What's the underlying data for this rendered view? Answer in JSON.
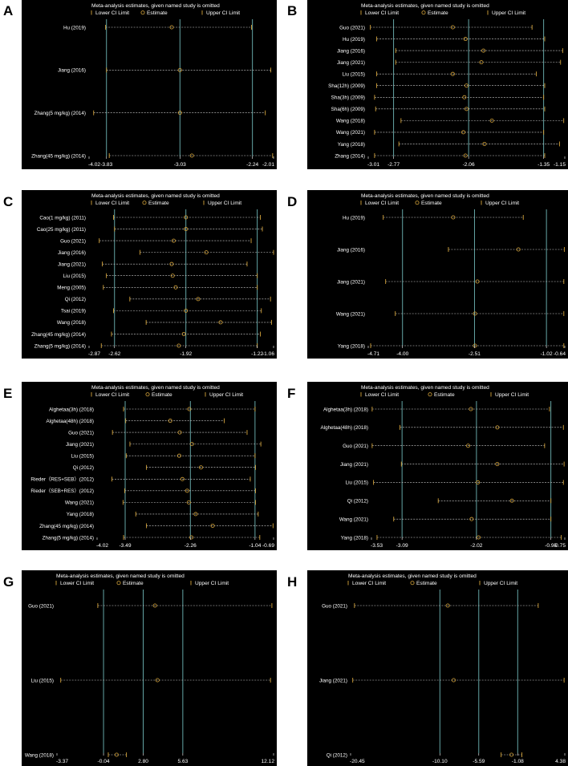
{
  "colors": {
    "background": "#000000",
    "text": "#ffffff",
    "guide": "#6fb7b7",
    "ci_line": "#cfcfcf",
    "estimate": "#d4a33a"
  },
  "legend": {
    "title": "Meta-analysis estimates, given named study is omitted",
    "lower": "Lower CI Limit",
    "estimate": "Estimate",
    "upper": "Upper CI Limit"
  },
  "chart_data": [
    {
      "panel": "A",
      "type": "scatter",
      "xlim": [
        -4.02,
        -2.01
      ],
      "ticks": [
        "-4.02",
        "-3.83",
        "-3.03",
        "-2.24",
        "-2.01"
      ],
      "tick_values": [
        -4.02,
        -3.83,
        -3.03,
        -2.24,
        -2.01
      ],
      "studies": [
        {
          "label": "Hu (2019)",
          "lower": -3.84,
          "est": -3.12,
          "upper": -2.25
        },
        {
          "label": "Jiang (2016)",
          "lower": -3.83,
          "est": -3.03,
          "upper": -2.04
        },
        {
          "label": "Zhang(5 mg/kg) (2014)",
          "lower": -3.97,
          "est": -3.03,
          "upper": -2.1
        },
        {
          "label": "Zhang(45 mg/kg) (2014)",
          "lower": -3.8,
          "est": -2.9,
          "upper": -2.02
        }
      ]
    },
    {
      "panel": "B",
      "type": "scatter",
      "xlim": [
        -3.01,
        -1.15
      ],
      "ticks": [
        "-3.01",
        "-2.77",
        "-2.06",
        "-1.35",
        "-1.15"
      ],
      "tick_values": [
        -3.01,
        -2.77,
        -2.06,
        -1.35,
        -1.15
      ],
      "studies": [
        {
          "label": "Guo (2021)",
          "lower": -2.99,
          "est": -2.21,
          "upper": -1.46
        },
        {
          "label": "Hu (2019)",
          "lower": -2.93,
          "est": -2.09,
          "upper": -1.34
        },
        {
          "label": "Jiang (2016)",
          "lower": -2.75,
          "est": -1.92,
          "upper": -1.17
        },
        {
          "label": "Jiang (2021)",
          "lower": -2.75,
          "est": -1.94,
          "upper": -1.19
        },
        {
          "label": "Liu (2015)",
          "lower": -2.93,
          "est": -2.21,
          "upper": -1.42
        },
        {
          "label": "Sha(12h) (2009)",
          "lower": -2.93,
          "est": -2.08,
          "upper": -1.34
        },
        {
          "label": "Sha(3h) (2009)",
          "lower": -2.95,
          "est": -2.1,
          "upper": -1.35
        },
        {
          "label": "Sha(6h) (2009)",
          "lower": -2.94,
          "est": -2.08,
          "upper": -1.34
        },
        {
          "label": "Wang (2018)",
          "lower": -2.7,
          "est": -1.84,
          "upper": -1.16
        },
        {
          "label": "Wang (2021)",
          "lower": -2.95,
          "est": -2.11,
          "upper": -1.35
        },
        {
          "label": "Yang (2018)",
          "lower": -2.72,
          "est": -1.91,
          "upper": -1.2
        },
        {
          "label": "Zhang (2014)",
          "lower": -2.95,
          "est": -2.09,
          "upper": -1.34
        }
      ]
    },
    {
      "panel": "C",
      "type": "scatter",
      "xlim": [
        -2.87,
        -1.06
      ],
      "ticks": [
        "-2.87",
        "-2.62",
        "-1.92",
        "-1.22",
        "-1.06"
      ],
      "tick_values": [
        -2.87,
        -2.62,
        -1.92,
        -1.22,
        -1.06
      ],
      "studies": [
        {
          "label": "Cao(1 mg/kg) (2011)",
          "lower": -2.63,
          "est": -1.92,
          "upper": -1.19
        },
        {
          "label": "Cao(25 mg/kg) (2011)",
          "lower": -2.62,
          "est": -1.92,
          "upper": -1.17
        },
        {
          "label": "Guo (2021)",
          "lower": -2.77,
          "est": -2.04,
          "upper": -1.28
        },
        {
          "label": "Jiang (2016)",
          "lower": -2.37,
          "est": -1.72,
          "upper": -1.06
        },
        {
          "label": "Jiang (2021)",
          "lower": -2.74,
          "est": -2.06,
          "upper": -1.32
        },
        {
          "label": "Liu (2015)",
          "lower": -2.7,
          "est": -2.05,
          "upper": -1.22
        },
        {
          "label": "Meng (2005)",
          "lower": -2.73,
          "est": -2.02,
          "upper": -1.22
        },
        {
          "label": "Qi (2012)",
          "lower": -2.47,
          "est": -1.8,
          "upper": -1.09
        },
        {
          "label": "Tsai (2019)",
          "lower": -2.63,
          "est": -1.92,
          "upper": -1.18
        },
        {
          "label": "Wang (2018)",
          "lower": -2.31,
          "est": -1.58,
          "upper": -1.08
        },
        {
          "label": "Zhang(45 mg/kg) (2014)",
          "lower": -2.65,
          "est": -1.94,
          "upper": -1.19
        },
        {
          "label": "Zhang(5 mg/kg) (2014)",
          "lower": -2.75,
          "est": -1.99,
          "upper": -1.22
        }
      ]
    },
    {
      "panel": "D",
      "type": "scatter",
      "xlim": [
        -4.71,
        -0.64
      ],
      "ticks": [
        "-4.71",
        "-4.00",
        "-2.51",
        "-1.02",
        "-0.64"
      ],
      "tick_values": [
        -4.71,
        -4.0,
        -2.51,
        -1.02,
        -0.64
      ],
      "studies": [
        {
          "label": "Hu (2019)",
          "lower": -4.4,
          "est": -2.95,
          "upper": -1.5
        },
        {
          "label": "Jiang (2016)",
          "lower": -3.05,
          "est": -1.6,
          "upper": -0.65
        },
        {
          "label": "Jiang (2021)",
          "lower": -4.35,
          "est": -2.45,
          "upper": -0.66
        },
        {
          "label": "Wang (2021)",
          "lower": -4.15,
          "est": -2.5,
          "upper": -0.66
        },
        {
          "label": "Yang (2018)",
          "lower": -4.66,
          "est": -2.5,
          "upper": -0.66
        }
      ]
    },
    {
      "panel": "E",
      "type": "scatter",
      "xlim": [
        -4.02,
        -0.69
      ],
      "ticks": [
        "-4.02",
        "-3.49",
        "-2.26",
        "-1.04",
        "-0.69"
      ],
      "tick_values": [
        -4.02,
        -3.49,
        -2.26,
        -1.04,
        -0.69
      ],
      "studies": [
        {
          "label": "Alghetaa(3h) (2018)",
          "lower": -3.52,
          "est": -2.28,
          "upper": -1.04
        },
        {
          "label": "Alghetaa(48h) (2018)",
          "lower": -3.48,
          "est": -2.64,
          "upper": -1.62
        },
        {
          "label": "Guo (2021)",
          "lower": -3.73,
          "est": -2.46,
          "upper": -1.19
        },
        {
          "label": "Jiang (2021)",
          "lower": -3.4,
          "est": -2.23,
          "upper": -0.93
        },
        {
          "label": "Liu (2015)",
          "lower": -3.47,
          "est": -2.47,
          "upper": -1.04
        },
        {
          "label": "Qi (2012)",
          "lower": -3.09,
          "est": -2.06,
          "upper": -1.03
        },
        {
          "label": "Rieder（RES+SEB）(2012)",
          "lower": -3.74,
          "est": -2.41,
          "upper": -1.13
        },
        {
          "label": "Rieder（SEB+RES）(2012)",
          "lower": -3.5,
          "est": -2.32,
          "upper": -1.03
        },
        {
          "label": "Wang (2021)",
          "lower": -3.53,
          "est": -2.29,
          "upper": -1.03
        },
        {
          "label": "Yang (2018)",
          "lower": -3.29,
          "est": -2.16,
          "upper": -0.98
        },
        {
          "label": "Zhang(45 mg/kg) (2014)",
          "lower": -3.09,
          "est": -1.84,
          "upper": -0.7
        },
        {
          "label": "Zhang(5 mg/kg) (2014)",
          "lower": -3.52,
          "est": -2.24,
          "upper": -0.95
        }
      ]
    },
    {
      "panel": "F",
      "type": "scatter",
      "xlim": [
        -3.53,
        -0.75
      ],
      "ticks": [
        "-3.53",
        "-3.09",
        "-2.02",
        "-0.95",
        "-0.75"
      ],
      "tick_values": [
        -3.53,
        -3.09,
        -2.02,
        -0.95,
        -0.75
      ],
      "studies": [
        {
          "label": "Alghetaa(3h) (2018)",
          "lower": -3.52,
          "est": -2.1,
          "upper": -0.97
        },
        {
          "label": "Alghetaa(48h) (2018)",
          "lower": -3.12,
          "est": -1.72,
          "upper": -0.77
        },
        {
          "label": "Guo (2021)",
          "lower": -3.52,
          "est": -2.14,
          "upper": -1.04
        },
        {
          "label": "Jiang (2021)",
          "lower": -3.1,
          "est": -1.72,
          "upper": -0.76
        },
        {
          "label": "Liu (2015)",
          "lower": -3.5,
          "est": -2.0,
          "upper": -0.77
        },
        {
          "label": "Qi (2012)",
          "lower": -2.57,
          "est": -1.51,
          "upper": -0.95
        },
        {
          "label": "Wang (2021)",
          "lower": -3.21,
          "est": -2.09,
          "upper": -0.95
        },
        {
          "label": "Yang (2018)",
          "lower": -3.45,
          "est": -1.99,
          "upper": -0.8
        }
      ]
    },
    {
      "panel": "G",
      "type": "scatter",
      "xlim": [
        -3.37,
        12.12
      ],
      "ticks": [
        "-3.37",
        "-0.04",
        "2.80",
        "5.63",
        "12.12"
      ],
      "tick_values": [
        -3.37,
        -0.04,
        2.8,
        5.63,
        12.12
      ],
      "studies": [
        {
          "label": "Guo (2021)",
          "lower": -0.45,
          "est": 3.64,
          "upper": 12.0
        },
        {
          "label": "Liu (2015)",
          "lower": -3.1,
          "est": 3.82,
          "upper": 11.9
        },
        {
          "label": "Wang (2018)",
          "lower": 0.3,
          "est": 0.9,
          "upper": 1.6
        }
      ]
    },
    {
      "panel": "H",
      "type": "scatter",
      "xlim": [
        -20.45,
        4.38
      ],
      "ticks": [
        "-20.45",
        "-10.10",
        "-5.59",
        "-1.08",
        "4.38"
      ],
      "tick_values": [
        -20.45,
        -10.1,
        -5.59,
        -1.08,
        4.38
      ],
      "studies": [
        {
          "label": "Guo (2021)",
          "lower": -20.0,
          "est": -9.18,
          "upper": 1.3
        },
        {
          "label": "Jiang (2021)",
          "lower": -20.2,
          "est": -8.5,
          "upper": 4.3
        },
        {
          "label": "Qi (2012)",
          "lower": -3.0,
          "est": -1.8,
          "upper": -0.6
        }
      ]
    }
  ]
}
